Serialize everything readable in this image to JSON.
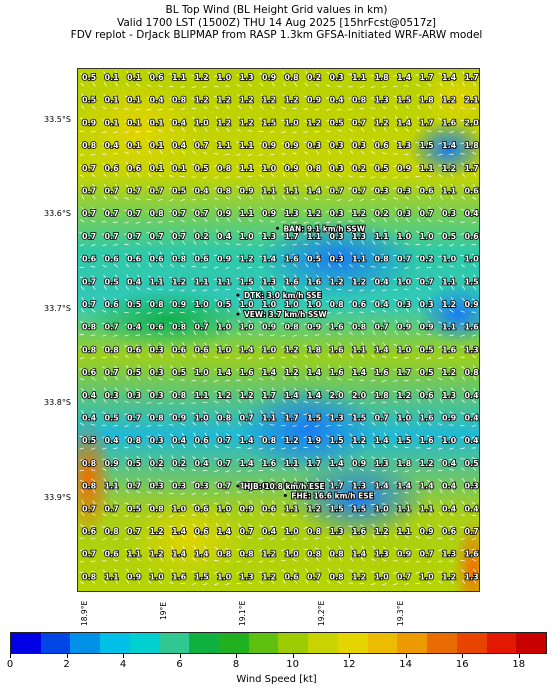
{
  "header": {
    "title_line1": "BL Top Wind (BL Height Grid values in km)",
    "title_line2": "Valid 1700 LST (1500Z) THU 14 Aug 2025 [15hrFcst@0517z]",
    "title_line3": "FDV replot - DrJack BLIPMAP from RASP 1.3km GFSA-Initiated WRF-ARW model"
  },
  "map": {
    "lat_labels": [
      "33.5°S",
      "33.6°S",
      "33.7°S",
      "33.8°S",
      "33.9°S"
    ],
    "lon_labels": [
      "18.9°E",
      "19°E",
      "19.1°E",
      "19.2°E",
      "19.3°E"
    ],
    "grid_values": [
      [
        "0.5",
        "0.1",
        "0.1",
        "0.6",
        "1.1",
        "1.2",
        "1.0",
        "1.3",
        "0.9",
        "0.8",
        "0.2",
        "0.3",
        "1.1",
        "1.8",
        "1.4",
        "1.7",
        "1.4",
        "1.7"
      ],
      [
        "0.5",
        "0.1",
        "0.1",
        "0.4",
        "0.8",
        "1.2",
        "1.2",
        "1.2",
        "1.2",
        "1.2",
        "0.9",
        "0.4",
        "0.8",
        "1.3",
        "1.5",
        "1.8",
        "1.2",
        "2.1"
      ],
      [
        "0.9",
        "0.1",
        "0.1",
        "0.1",
        "0.4",
        "1.0",
        "1.2",
        "1.2",
        "1.5",
        "1.0",
        "1.2",
        "0.5",
        "0.7",
        "1.2",
        "1.4",
        "1.7",
        "1.6",
        "2.0"
      ],
      [
        "0.8",
        "0.4",
        "0.1",
        "0.1",
        "0.4",
        "0.7",
        "1.1",
        "1.1",
        "0.9",
        "0.9",
        "0.3",
        "0.3",
        "0.3",
        "0.6",
        "1.3",
        "1.5",
        "1.4",
        "1.8"
      ],
      [
        "0.7",
        "0.6",
        "0.6",
        "0.1",
        "0.1",
        "0.5",
        "0.8",
        "1.1",
        "1.0",
        "0.9",
        "0.8",
        "0.3",
        "0.2",
        "0.5",
        "0.9",
        "1.1",
        "1.2",
        "1.7"
      ],
      [
        "0.7",
        "0.7",
        "0.7",
        "0.7",
        "0.5",
        "0.4",
        "0.8",
        "0.9",
        "1.1",
        "1.1",
        "1.4",
        "0.7",
        "0.7",
        "0.3",
        "0.3",
        "0.6",
        "1.1",
        "0.6"
      ],
      [
        "0.7",
        "0.7",
        "0.7",
        "0.8",
        "0.7",
        "0.7",
        "0.9",
        "1.1",
        "0.9",
        "1.3",
        "1.2",
        "0.3",
        "1.2",
        "0.2",
        "0.3",
        "0.7",
        "0.3",
        "0.4"
      ],
      [
        "0.7",
        "0.7",
        "0.7",
        "0.7",
        "0.7",
        "0.2",
        "0.4",
        "1.0",
        "1.3",
        "1.7",
        "1.1",
        "0.3",
        "1.3",
        "1.1",
        "1.0",
        "1.0",
        "0.5",
        "0.6"
      ],
      [
        "0.6",
        "0.6",
        "0.6",
        "0.6",
        "0.8",
        "0.6",
        "0.9",
        "1.2",
        "1.4",
        "1.6",
        "0.5",
        "0.3",
        "1.1",
        "0.8",
        "0.7",
        "0.2",
        "1.0",
        "1.0"
      ],
      [
        "0.7",
        "0.5",
        "0.4",
        "1.1",
        "1.2",
        "1.1",
        "1.1",
        "1.5",
        "1.3",
        "1.6",
        "1.6",
        "1.2",
        "1.2",
        "0.4",
        "1.0",
        "0.7",
        "1.1",
        "1.5"
      ],
      [
        "0.7",
        "0.6",
        "0.5",
        "0.8",
        "0.9",
        "1.0",
        "0.5",
        "1.0",
        "1.0",
        "1.0",
        "1.0",
        "0.8",
        "0.6",
        "0.4",
        "0.3",
        "0.3",
        "1.2",
        "0.9"
      ],
      [
        "0.8",
        "0.7",
        "0.4",
        "0.6",
        "0.8",
        "0.7",
        "1.0",
        "1.0",
        "0.9",
        "0.8",
        "0.9",
        "1.6",
        "0.8",
        "0.7",
        "0.9",
        "0.9",
        "1.1",
        "1.6"
      ],
      [
        "0.8",
        "0.8",
        "0.6",
        "0.3",
        "0.6",
        "0.6",
        "1.0",
        "1.4",
        "1.0",
        "1.2",
        "1.8",
        "1.6",
        "1.1",
        "1.4",
        "1.0",
        "0.5",
        "1.6",
        "1.3"
      ],
      [
        "0.6",
        "0.7",
        "0.5",
        "0.3",
        "0.5",
        "1.0",
        "1.4",
        "1.6",
        "1.4",
        "1.2",
        "1.4",
        "1.6",
        "1.4",
        "1.6",
        "1.7",
        "0.5",
        "1.2",
        "0.8"
      ],
      [
        "0.4",
        "0.3",
        "0.3",
        "0.3",
        "0.8",
        "1.1",
        "1.2",
        "1.2",
        "1.7",
        "1.4",
        "1.4",
        "2.0",
        "2.0",
        "1.8",
        "1.2",
        "0.6",
        "1.3",
        "0.4"
      ],
      [
        "0.4",
        "0.5",
        "0.7",
        "0.8",
        "0.9",
        "1.0",
        "0.8",
        "0.7",
        "1.1",
        "1.7",
        "1.5",
        "1.3",
        "1.5",
        "0.7",
        "1.0",
        "1.6",
        "0.9",
        "0.4"
      ],
      [
        "0.5",
        "0.4",
        "0.8",
        "0.3",
        "0.4",
        "0.6",
        "0.7",
        "1.4",
        "0.8",
        "1.2",
        "1.9",
        "1.5",
        "1.2",
        "1.4",
        "1.5",
        "1.6",
        "1.0",
        "0.4"
      ],
      [
        "0.8",
        "0.9",
        "0.5",
        "0.2",
        "0.2",
        "0.4",
        "0.7",
        "1.4",
        "1.6",
        "1.1",
        "1.7",
        "1.4",
        "0.9",
        "1.3",
        "1.8",
        "1.2",
        "0.4",
        "0.5"
      ],
      [
        "0.8",
        "1.1",
        "0.7",
        "0.3",
        "0.3",
        "0.3",
        "0.7",
        "1.0",
        "0.8",
        "0.5",
        "1.6",
        "1.7",
        "1.3",
        "1.4",
        "1.4",
        "1.4",
        "0.4",
        "0.3"
      ],
      [
        "0.7",
        "0.7",
        "0.5",
        "0.8",
        "1.0",
        "0.6",
        "1.0",
        "0.9",
        "0.6",
        "1.1",
        "1.2",
        "1.5",
        "1.5",
        "1.0",
        "1.1",
        "1.1",
        "0.4",
        "0.4"
      ],
      [
        "0.6",
        "0.8",
        "0.7",
        "1.2",
        "1.4",
        "0.6",
        "1.4",
        "0.7",
        "0.4",
        "1.0",
        "0.8",
        "1.3",
        "1.6",
        "1.2",
        "1.1",
        "0.9",
        "0.6",
        "0.7"
      ],
      [
        "0.7",
        "0.6",
        "1.1",
        "1.2",
        "1.4",
        "1.4",
        "0.8",
        "0.8",
        "1.2",
        "1.0",
        "0.8",
        "0.8",
        "1.4",
        "1.3",
        "0.9",
        "0.7",
        "1.3",
        "1.6"
      ],
      [
        "0.8",
        "1.1",
        "0.9",
        "1.0",
        "1.6",
        "1.5",
        "1.0",
        "1.3",
        "1.2",
        "0.6",
        "0.7",
        "0.8",
        "1.2",
        "1.0",
        "0.7",
        "1.0",
        "1.2",
        "1.3"
      ]
    ],
    "annotations": [
      {
        "text": "BAN: 9.1 km/h SSW",
        "lon": 19.13,
        "lat": -33.62
      },
      {
        "text": "DTK: 3.0 km/h SSE",
        "lon": 19.08,
        "lat": -33.69
      },
      {
        "text": "VEW: 3.7 km/h SSW",
        "lon": 19.08,
        "lat": -33.71
      },
      {
        "text": "HJB: 10.8 km/h ESE",
        "lon": 19.08,
        "lat": -33.89
      },
      {
        "text": "FHE: 16.6 km/h ESE",
        "lon": 19.14,
        "lat": -33.9
      }
    ]
  },
  "colorbar": {
    "colors": [
      "#0000e6",
      "#0046e6",
      "#0090e8",
      "#00c0e8",
      "#00d0d0",
      "#30c890",
      "#10b040",
      "#20b020",
      "#60c010",
      "#9ccc00",
      "#c8d400",
      "#e4d400",
      "#ecbc00",
      "#ec9a00",
      "#e86c00",
      "#e84400",
      "#e21800",
      "#c80000"
    ],
    "tick_labels": [
      "0",
      "2",
      "4",
      "6",
      "8",
      "10",
      "12",
      "14",
      "16",
      "18"
    ],
    "label": "Wind Speed [kt]"
  }
}
